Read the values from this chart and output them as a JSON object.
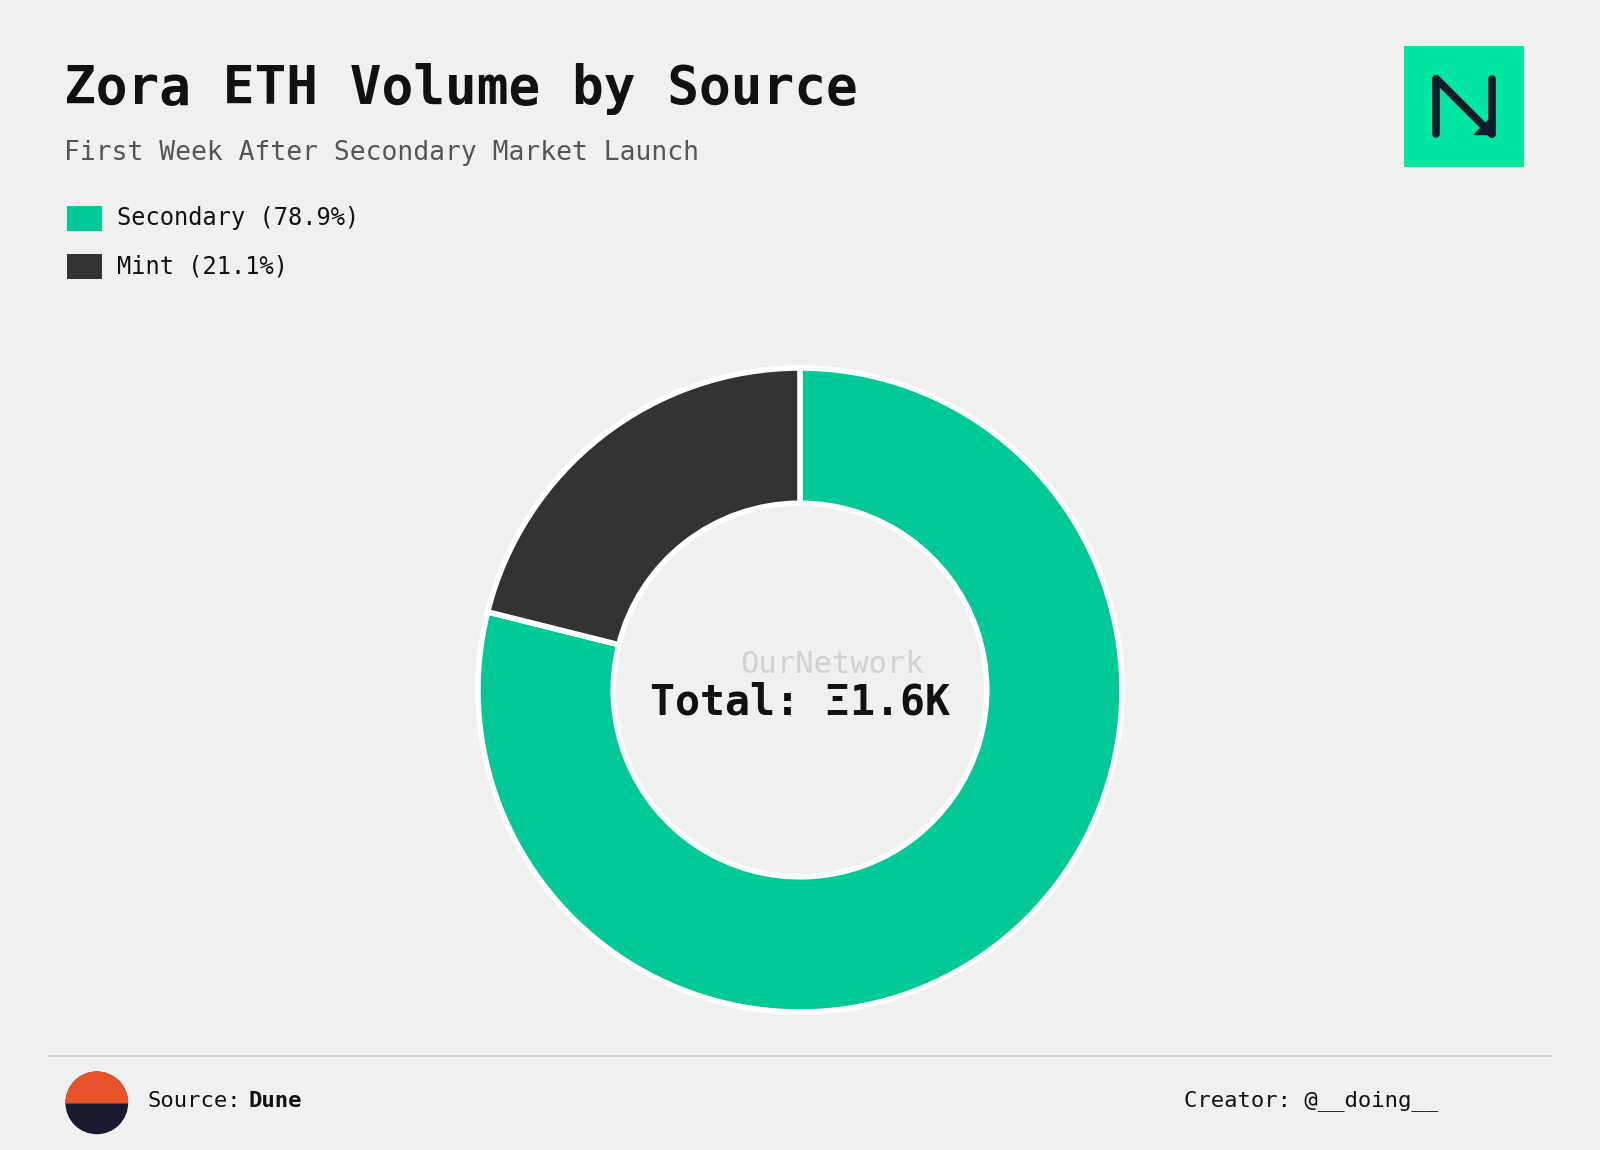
{
  "title": "Zora ETH Volume by Source",
  "subtitle": "First Week After Secondary Market Launch",
  "slices": [
    78.9,
    21.1
  ],
  "labels": [
    "Secondary",
    "Mint"
  ],
  "colors": [
    "#00C896",
    "#333333"
  ],
  "center_text": "Total: Ξ1.6K",
  "legend_labels": [
    "Secondary (78.9%)",
    "Mint (21.1%)"
  ],
  "source_label": "Source:",
  "source_name": "Dune",
  "creator_text": "Creator: @__doing__",
  "background_color": "#f0f0f0",
  "watermark_text": "OurNetwork",
  "logo_bg_color": "#00E5A0",
  "logo_icon_color": "#0d1b2a",
  "dune_orange": "#E8532A",
  "dune_dark": "#1a1a2e"
}
